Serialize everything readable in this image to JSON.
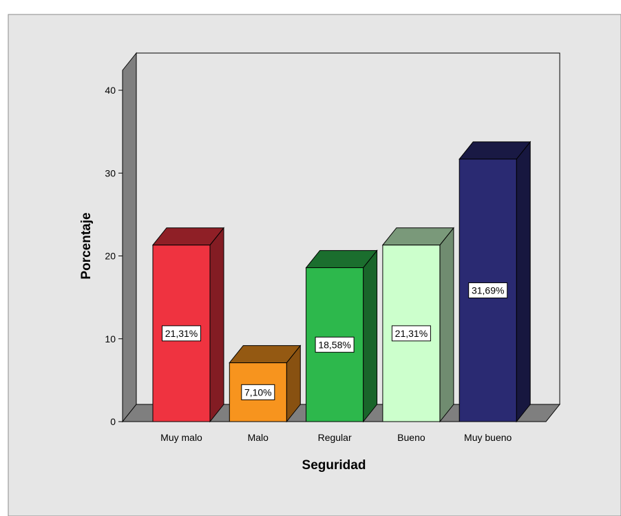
{
  "chart_data": {
    "type": "bar",
    "title": "",
    "xlabel": "Seguridad",
    "ylabel": "Porcentaje",
    "categories": [
      "Muy malo",
      "Malo",
      "Regular",
      "Bueno",
      "Muy bueno"
    ],
    "values": [
      21.31,
      7.1,
      18.58,
      21.31,
      31.69
    ],
    "data_labels": [
      "21,31%",
      "7,10%",
      "18,58%",
      "21,31%",
      "31,69%"
    ],
    "colors": [
      "#EF3340",
      "#F7941E",
      "#2DB84C",
      "#CCFFCC",
      "#2A2A72"
    ],
    "yticks": [
      "0",
      "10",
      "20",
      "30",
      "40"
    ],
    "ylim": [
      0,
      40
    ],
    "grid": false,
    "legend": "none",
    "style": "3d"
  }
}
